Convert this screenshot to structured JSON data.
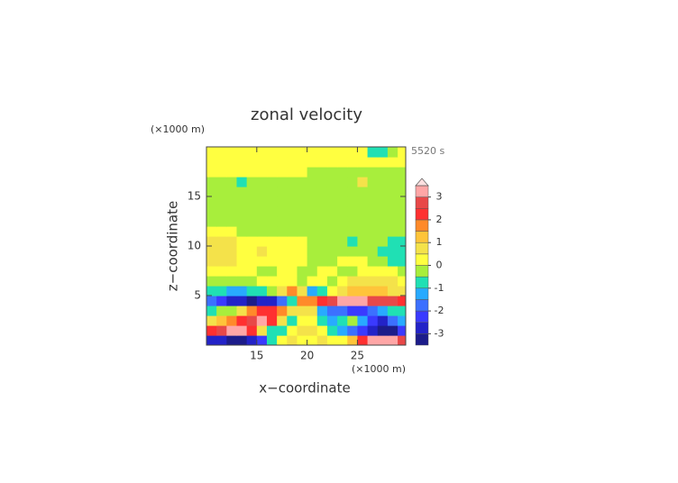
{
  "chart_data": {
    "type": "contour",
    "title": "zonal velocity",
    "time_label": "5520 s",
    "x_label": "x−coordinate",
    "y_label": "z−coordinate",
    "x_unit": "(×1000 m)",
    "y_unit": "(×1000 m)",
    "xlim": [
      10,
      29.8
    ],
    "ylim": [
      0,
      20
    ],
    "xticks": [
      15,
      20,
      25
    ],
    "yticks": [
      5,
      10,
      15
    ],
    "x": [
      10.5,
      11.5,
      12.5,
      13.5,
      14.5,
      15.5,
      16.5,
      17.5,
      18.5,
      19.5,
      20.5,
      21.5,
      22.5,
      23.5,
      24.5,
      25.5,
      26.5,
      27.5,
      28.5,
      29.5
    ],
    "z": [
      0.5,
      1.5,
      2.5,
      3.5,
      4.5,
      5.5,
      6.5,
      7.5,
      8.5,
      9.5,
      10.5,
      11.5,
      12.5,
      13.5,
      14.5,
      15.5,
      16.5,
      17.5,
      18.5,
      19.5
    ],
    "z_values": [
      [
        -2.6,
        -3,
        -3.4,
        -3.4,
        -3,
        -2.2,
        -1,
        0.3,
        0.6,
        0.4,
        0.4,
        0.6,
        0.3,
        0,
        1,
        2.2,
        3,
        3.4,
        3.4,
        2.6
      ],
      [
        2,
        2.5,
        3.2,
        3,
        2.2,
        0.5,
        -1,
        -0.7,
        0.3,
        0.5,
        0.5,
        0.2,
        -0.7,
        -1.2,
        -2,
        -2.5,
        -3,
        -3.4,
        -3.2,
        -2.5
      ],
      [
        0.8,
        1.3,
        1.8,
        2,
        2.6,
        3.1,
        2.4,
        0.6,
        -0.8,
        0.4,
        0.4,
        -0.8,
        -1.2,
        -0.8,
        -0.4,
        -1.5,
        -2.4,
        -2.6,
        -2,
        -1.2
      ],
      [
        -0.8,
        -0.5,
        -0.2,
        0.5,
        1.5,
        2,
        2.3,
        1.8,
        0.9,
        0.6,
        0.6,
        -1.2,
        -1.8,
        -2,
        -2.3,
        -2.5,
        -2,
        -1.5,
        -1,
        -0.6
      ],
      [
        -1.8,
        -2.5,
        -2.8,
        -3,
        -3.2,
        -3,
        -2.6,
        -1.8,
        -0.6,
        1.5,
        1.6,
        2,
        2.6,
        3,
        3.2,
        3,
        2.8,
        2.5,
        2.6,
        2.2
      ],
      [
        -0.6,
        -0.9,
        -1.1,
        -1.2,
        -1,
        -0.7,
        -0.2,
        0.6,
        1.5,
        0.5,
        -1.5,
        -1,
        0.2,
        0.8,
        1,
        1.1,
        1.2,
        1,
        0.8,
        0.6
      ],
      [
        -0.1,
        -0.2,
        -0.4,
        -0.4,
        -0.3,
        0,
        0.2,
        0.4,
        0.3,
        -0.2,
        0.2,
        0,
        -0.2,
        0.2,
        0.5,
        0.6,
        0.7,
        0.6,
        0.5,
        0.3
      ],
      [
        0.2,
        0.3,
        0.3,
        0.2,
        0.1,
        -0.1,
        -0.2,
        0.2,
        0.3,
        -0.3,
        -0.3,
        0.3,
        0.2,
        -0.2,
        -0.1,
        0.2,
        0.2,
        0.1,
        0,
        -0.1
      ],
      [
        0.6,
        0.7,
        0.6,
        0.4,
        0.3,
        0.2,
        0.1,
        0.1,
        0.2,
        0.3,
        -0.2,
        -0.1,
        -0.1,
        0,
        0.1,
        0,
        -0.1,
        -0.3,
        -0.6,
        -0.8
      ],
      [
        0.7,
        0.8,
        0.6,
        0.4,
        0.3,
        0.6,
        0.3,
        0.2,
        0.2,
        0.2,
        -0.2,
        -0.2,
        -0.1,
        -0.2,
        -0.3,
        -0.2,
        -0.4,
        -0.6,
        -0.7,
        -0.8
      ],
      [
        0.6,
        0.6,
        0.5,
        0.3,
        0.2,
        0.2,
        0.1,
        0.1,
        0.1,
        0.1,
        -0.1,
        -0.1,
        -0.2,
        -0.2,
        -0.6,
        -0.3,
        -0.3,
        -0.5,
        -0.6,
        -0.7
      ],
      [
        0.3,
        0.2,
        0.1,
        -0.1,
        -0.1,
        -0.1,
        -0.1,
        -0.1,
        -0.1,
        -0.1,
        -0.2,
        -0.2,
        -0.2,
        -0.2,
        -0.2,
        -0.2,
        -0.2,
        -0.3,
        -0.3,
        -0.4
      ],
      [
        -0.2,
        -0.2,
        -0.2,
        -0.2,
        -0.2,
        -0.2,
        -0.2,
        -0.2,
        -0.2,
        -0.2,
        -0.2,
        -0.2,
        -0.2,
        -0.2,
        -0.2,
        -0.2,
        -0.2,
        -0.2,
        -0.2,
        -0.2
      ],
      [
        -0.2,
        -0.2,
        -0.3,
        -0.2,
        -0.2,
        -0.2,
        -0.2,
        -0.2,
        -0.2,
        -0.2,
        -0.2,
        -0.2,
        -0.2,
        -0.2,
        -0.2,
        -0.2,
        -0.2,
        -0.2,
        -0.2,
        -0.2
      ],
      [
        -0.2,
        -0.2,
        -0.2,
        -0.2,
        -0.2,
        -0.2,
        -0.2,
        -0.2,
        -0.2,
        -0.2,
        -0.2,
        -0.2,
        -0.2,
        -0.2,
        -0.2,
        -0.2,
        -0.2,
        -0.2,
        -0.2,
        -0.2
      ],
      [
        -0.2,
        -0.2,
        -0.2,
        -0.2,
        -0.2,
        -0.2,
        -0.2,
        -0.2,
        -0.2,
        -0.2,
        -0.2,
        -0.2,
        -0.2,
        -0.2,
        -0.2,
        -0.2,
        -0.2,
        -0.2,
        -0.2,
        -0.2
      ],
      [
        -0.2,
        -0.2,
        -0.3,
        -0.7,
        -0.3,
        -0.2,
        -0.2,
        -0.2,
        -0.2,
        -0.2,
        -0.2,
        -0.2,
        -0.2,
        -0.2,
        -0.2,
        0.7,
        -0.2,
        -0.2,
        -0.2,
        -0.2
      ],
      [
        0.1,
        0.1,
        0.1,
        0.1,
        0.1,
        0.1,
        0.1,
        0.1,
        0.1,
        0.1,
        -0.1,
        -0.1,
        -0.1,
        -0.1,
        -0.1,
        -0.1,
        -0.1,
        -0.1,
        -0.1,
        -0.1
      ],
      [
        0.2,
        0.2,
        0.2,
        0.2,
        0.2,
        0.2,
        0.2,
        0.2,
        0.2,
        0.2,
        0.2,
        0.2,
        0.2,
        0.2,
        0.2,
        0.2,
        0.2,
        0.2,
        0.2,
        0.2
      ],
      [
        0.2,
        0.2,
        0.2,
        0.2,
        0.2,
        0.2,
        0.2,
        0.2,
        0.2,
        0.2,
        0.2,
        0.2,
        0.2,
        0.2,
        0.2,
        0.2,
        -0.7,
        -0.7,
        -0.3,
        0.2
      ]
    ],
    "levels": [
      -3.5,
      -3,
      -2.5,
      -2,
      -1.5,
      -1,
      -0.5,
      0,
      0.5,
      1,
      1.5,
      2,
      2.5,
      3,
      3.5
    ],
    "colors": [
      "#1c1c8a",
      "#2323c8",
      "#3a3aff",
      "#3c70ff",
      "#28aaff",
      "#20e0b4",
      "#a8ee3c",
      "#ffff40",
      "#f4e24a",
      "#ffc43a",
      "#ff8a2a",
      "#ff3030",
      "#e84848",
      "#ffa6a6"
    ],
    "extend_color": "#ffe0e0",
    "cticks": [
      -3,
      -2,
      -1,
      0,
      1,
      2,
      3
    ]
  }
}
